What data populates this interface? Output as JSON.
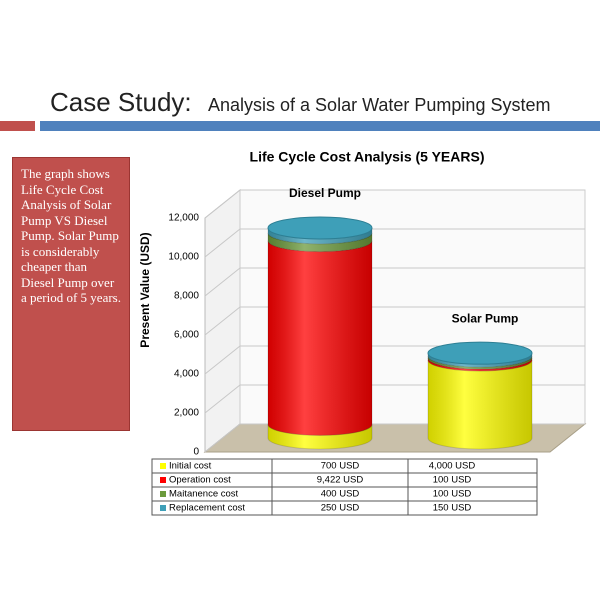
{
  "slide": {
    "title_main": "Case Study:",
    "title_sub": "Analysis of a Solar Water Pumping System",
    "note": "The graph shows Life Cycle Cost Analysis of Solar Pump VS Diesel Pump. Solar Pump is considerably cheaper than Diesel Pump over a period of  5 years."
  },
  "chart_data": {
    "type": "bar3d_stacked",
    "title": "Life Cycle Cost Analysis  (5 YEARS)",
    "y_label": "Present Value (USD)",
    "categories": [
      "Diesel Pump",
      "Solar Pump"
    ],
    "series": [
      {
        "name": "Initial cost",
        "color": "#ffff00",
        "values": [
          700,
          4000
        ],
        "value_labels": [
          "700 USD",
          "4,000 USD"
        ]
      },
      {
        "name": "Operation cost",
        "color": "#ff0000",
        "values": [
          9422,
          100
        ],
        "value_labels": [
          "9,422 USD",
          "100 USD"
        ]
      },
      {
        "name": "Maitanence cost",
        "color": "#6b9a3c",
        "values": [
          400,
          100
        ],
        "value_labels": [
          "400 USD",
          "100 USD"
        ]
      },
      {
        "name": "Replacement cost",
        "color": "#3e9fb8",
        "values": [
          250,
          150
        ],
        "value_labels": [
          "250 USD",
          "150 USD"
        ]
      }
    ],
    "ylim": [
      0,
      12000
    ],
    "yticks": [
      0,
      {
        "value": 2000,
        "label": "2,000"
      },
      {
        "value": 4000,
        "label": "4,000"
      },
      {
        "value": 6000,
        "label": "6,000"
      },
      {
        "value": 8000,
        "label": "8,000"
      },
      {
        "value": 10000,
        "label": "10,000"
      },
      {
        "value": 12000,
        "label": "12,000"
      }
    ],
    "grid": true
  }
}
